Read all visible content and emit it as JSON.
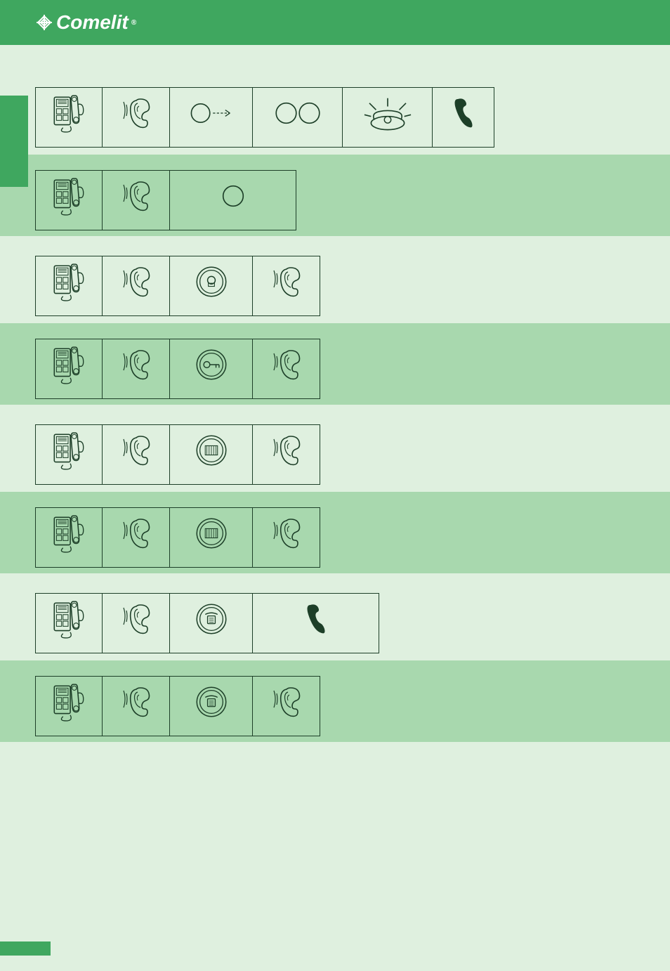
{
  "brand": {
    "name": "Comelit",
    "mark_color": "#ffffff",
    "reg": "®"
  },
  "colors": {
    "header_green": "#3fa75f",
    "panel_green": "#a8d8ae",
    "page_bg": "#dff0df",
    "stroke": "#1d3f28",
    "white": "#ffffff"
  },
  "left_tab": "",
  "page_title": "",
  "page_number": "",
  "captions": {
    "lift": "",
    "tone": "",
    "press": "",
    "dial": "",
    "ring": "",
    "hang": "",
    "wait": "",
    "talk": ""
  },
  "sections": [
    {
      "alt": false,
      "heading": "",
      "cells": [
        {
          "icon": "handset",
          "w": "w-phone",
          "cap": "lift"
        },
        {
          "icon": "ear",
          "w": "w-ear",
          "cap": "tone"
        },
        {
          "icon": "circle_arrow",
          "w": "w-btn",
          "cap": "press"
        },
        {
          "icon": "two_circles",
          "w": "w-btn2",
          "cap": "dial"
        },
        {
          "icon": "ringing_phone",
          "w": "w-ring",
          "cap": "ring"
        },
        {
          "icon": "hangup",
          "w": "w-hang",
          "cap": "hang"
        }
      ]
    },
    {
      "alt": true,
      "heading": "",
      "cells": [
        {
          "icon": "handset",
          "w": "w-phone",
          "cap": "lift"
        },
        {
          "icon": "ear",
          "w": "w-ear",
          "cap": "tone"
        },
        {
          "icon": "one_circle_wide",
          "w": "w-wide",
          "cap": "press"
        }
      ]
    },
    {
      "alt": false,
      "heading": "",
      "cells": [
        {
          "icon": "handset",
          "w": "w-phone",
          "cap": "lift"
        },
        {
          "icon": "ear",
          "w": "w-ear",
          "cap": "tone"
        },
        {
          "icon": "ring_button_bulb",
          "w": "w-btn",
          "cap": "press"
        },
        {
          "icon": "ear",
          "w": "w-ear",
          "cap": "tone"
        }
      ]
    },
    {
      "alt": true,
      "heading": "",
      "cells": [
        {
          "icon": "handset",
          "w": "w-phone",
          "cap": "lift"
        },
        {
          "icon": "ear",
          "w": "w-ear",
          "cap": "tone"
        },
        {
          "icon": "ring_button_key",
          "w": "w-btn",
          "cap": "press"
        },
        {
          "icon": "ear",
          "w": "w-ear",
          "cap": "tone"
        }
      ]
    },
    {
      "alt": false,
      "heading": "",
      "cells": [
        {
          "icon": "handset",
          "w": "w-phone",
          "cap": "lift"
        },
        {
          "icon": "ear",
          "w": "w-ear",
          "cap": "tone"
        },
        {
          "icon": "ring_button_gate",
          "w": "w-btn",
          "cap": "press"
        },
        {
          "icon": "ear",
          "w": "w-ear",
          "cap": "tone"
        }
      ]
    },
    {
      "alt": true,
      "heading": "",
      "cells": [
        {
          "icon": "handset",
          "w": "w-phone",
          "cap": "lift"
        },
        {
          "icon": "ear",
          "w": "w-ear",
          "cap": "tone"
        },
        {
          "icon": "ring_button_gate",
          "w": "w-btn",
          "cap": "press"
        },
        {
          "icon": "ear",
          "w": "w-ear",
          "cap": "tone"
        }
      ]
    },
    {
      "alt": false,
      "heading": "",
      "cells": [
        {
          "icon": "handset",
          "w": "w-phone",
          "cap": "lift"
        },
        {
          "icon": "ear",
          "w": "w-ear",
          "cap": "tone"
        },
        {
          "icon": "ring_button_switchboard",
          "w": "w-btn",
          "cap": "press"
        },
        {
          "icon": "hangup",
          "w": "w-hang-wide",
          "cap": "talk"
        }
      ]
    },
    {
      "alt": true,
      "heading": "",
      "cells": [
        {
          "icon": "handset",
          "w": "w-phone",
          "cap": "lift"
        },
        {
          "icon": "ear",
          "w": "w-ear",
          "cap": "tone"
        },
        {
          "icon": "ring_button_switchboard",
          "w": "w-btn",
          "cap": "press"
        },
        {
          "icon": "ear",
          "w": "w-ear",
          "cap": "tone"
        }
      ]
    }
  ]
}
